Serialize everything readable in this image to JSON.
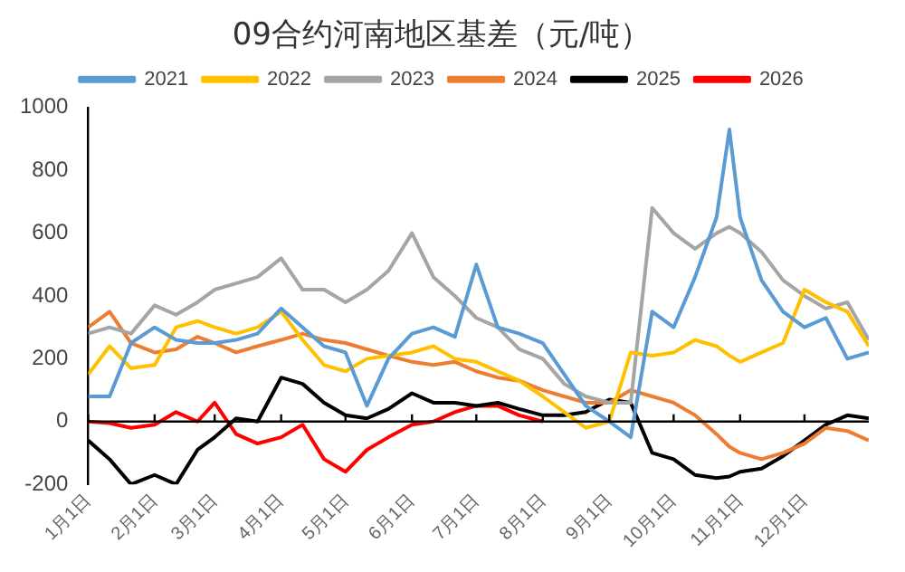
{
  "chart_data": {
    "type": "line",
    "title": "09合约河南地区基差（元/吨）",
    "x": [
      "--01-01",
      "--01-11",
      "--01-21",
      "--02-01",
      "--02-11",
      "--02-21",
      "--03-01",
      "--03-11",
      "--03-21",
      "--04-01",
      "--04-11",
      "--04-21",
      "--05-01",
      "--05-11",
      "--05-21",
      "--06-01",
      "--06-11",
      "--06-21",
      "--07-01",
      "--07-11",
      "--07-21",
      "--08-01",
      "--08-11",
      "--08-21",
      "--09-01",
      "--09-11",
      "--09-21",
      "--10-01",
      "--10-11",
      "--10-21",
      "--10-27",
      "--11-01",
      "--11-11",
      "--11-21",
      "--12-01",
      "--12-11",
      "--12-21",
      "--12-31"
    ],
    "series": [
      {
        "name": "2021",
        "color": "#5b9bd5",
        "values": [
          80,
          80,
          250,
          300,
          260,
          250,
          250,
          260,
          280,
          360,
          300,
          240,
          220,
          50,
          200,
          280,
          300,
          270,
          500,
          300,
          280,
          250,
          150,
          50,
          0,
          -50,
          350,
          300,
          460,
          650,
          930,
          650,
          450,
          350,
          300,
          330,
          200,
          220
        ]
      },
      {
        "name": "2022",
        "color": "#ffc000",
        "values": [
          150,
          240,
          170,
          180,
          300,
          320,
          300,
          280,
          300,
          350,
          260,
          180,
          160,
          200,
          210,
          220,
          240,
          200,
          190,
          160,
          130,
          80,
          30,
          -20,
          0,
          220,
          210,
          220,
          260,
          240,
          210,
          190,
          220,
          250,
          420,
          380,
          350,
          240
        ]
      },
      {
        "name": "2023",
        "color": "#a5a5a5",
        "values": [
          280,
          300,
          280,
          370,
          340,
          380,
          420,
          440,
          460,
          520,
          420,
          420,
          380,
          420,
          480,
          600,
          460,
          400,
          330,
          300,
          230,
          200,
          120,
          80,
          60,
          60,
          680,
          600,
          550,
          600,
          620,
          600,
          540,
          450,
          400,
          360,
          380,
          260
        ]
      },
      {
        "name": "2024",
        "color": "#ed7d31",
        "values": [
          300,
          350,
          250,
          220,
          230,
          270,
          250,
          220,
          240,
          260,
          280,
          260,
          250,
          230,
          210,
          190,
          180,
          190,
          160,
          140,
          130,
          100,
          80,
          60,
          60,
          100,
          80,
          60,
          20,
          -40,
          -80,
          -100,
          -120,
          -100,
          -70,
          -20,
          -30,
          -60
        ]
      },
      {
        "name": "2025",
        "color": "#000000",
        "values": [
          -60,
          -120,
          -200,
          -170,
          -200,
          -90,
          -50,
          10,
          0,
          140,
          120,
          60,
          20,
          10,
          40,
          90,
          60,
          60,
          50,
          60,
          40,
          20,
          20,
          30,
          70,
          60,
          -100,
          -120,
          -170,
          -180,
          -175,
          -160,
          -150,
          -110,
          -60,
          -10,
          20,
          10
        ]
      },
      {
        "name": "2026",
        "color": "#ff0000",
        "values": [
          0,
          -5,
          -20,
          -10,
          30,
          0,
          60,
          -40,
          -70,
          -50,
          -10,
          -120,
          -160,
          -90,
          -50,
          -10,
          0,
          30,
          50,
          50,
          20,
          0,
          null,
          null,
          null,
          null,
          null,
          null,
          null,
          null,
          null,
          null,
          null,
          null,
          null,
          null,
          null,
          null
        ]
      }
    ],
    "xlim": [
      "--01-01",
      "--12-31"
    ],
    "xticks": [
      {
        "value": "--01-01",
        "label": "1月1日"
      },
      {
        "value": "--02-01",
        "label": "2月1日"
      },
      {
        "value": "--03-01",
        "label": "3月1日"
      },
      {
        "value": "--04-01",
        "label": "4月1日"
      },
      {
        "value": "--05-01",
        "label": "5月1日"
      },
      {
        "value": "--06-01",
        "label": "6月1日"
      },
      {
        "value": "--07-01",
        "label": "7月1日"
      },
      {
        "value": "--08-01",
        "label": "8月1日"
      },
      {
        "value": "--09-01",
        "label": "9月1日"
      },
      {
        "value": "--10-01",
        "label": "10月1日"
      },
      {
        "value": "--11-01",
        "label": "11月1日"
      },
      {
        "value": "--12-01",
        "label": "12月1日"
      }
    ],
    "ylim": [
      -200,
      1000
    ],
    "yticks": [
      -200,
      0,
      200,
      400,
      600,
      800,
      1000
    ],
    "ref_lines": [
      {
        "axis": "y",
        "value": 0,
        "color": "#000000"
      }
    ],
    "legend": "top",
    "grid": false,
    "marker": "none",
    "line_style": "solid"
  }
}
